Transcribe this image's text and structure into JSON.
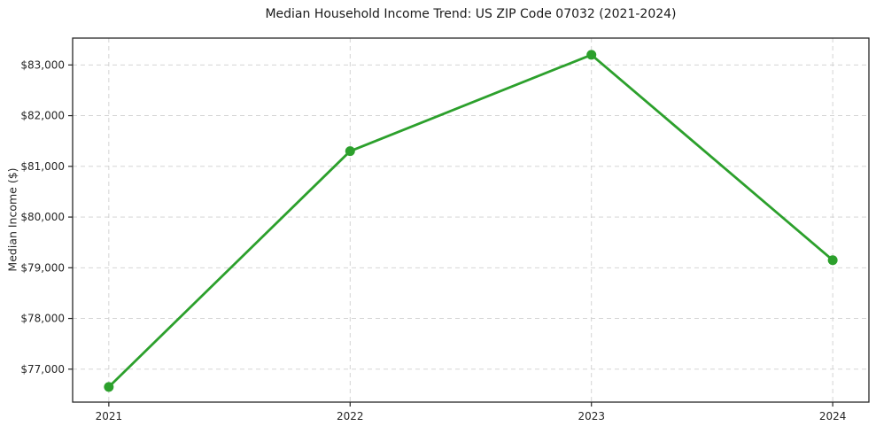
{
  "figure": {
    "title": "Median Household Income Trend: US ZIP Code 07032 (2021-2024)"
  },
  "chart_data": {
    "type": "line",
    "title": "Median Household Income Trend: US ZIP Code 07032 (2021-2024)",
    "xlabel": "",
    "ylabel": "Median Income ($)",
    "series": [
      {
        "name": "Median Household Income",
        "x": [
          2021,
          2022,
          2023,
          2024
        ],
        "values": [
          76650,
          81300,
          83200,
          79150
        ]
      }
    ],
    "xlim": [
      2020.85,
      2024.15
    ],
    "ylim": [
      76350,
      83530
    ],
    "xticks": [
      2021,
      2022,
      2023,
      2024
    ],
    "xtick_labels": [
      "2021",
      "2022",
      "2023",
      "2024"
    ],
    "yticks": [
      77000,
      78000,
      79000,
      80000,
      81000,
      82000,
      83000
    ],
    "ytick_labels": [
      "$77,000",
      "$78,000",
      "$79,000",
      "$80,000",
      "$81,000",
      "$82,000",
      "$83,000"
    ],
    "grid": true,
    "grid_style": "dashed",
    "legend": false,
    "marker": "circle",
    "colors": {
      "line": "#2ca02c",
      "marker": "#2ca02c",
      "grid": "#cfcfcf",
      "spine": "#262626",
      "tick_text": "#262626",
      "title_text": "#1a1a1a",
      "background": "#ffffff"
    }
  }
}
